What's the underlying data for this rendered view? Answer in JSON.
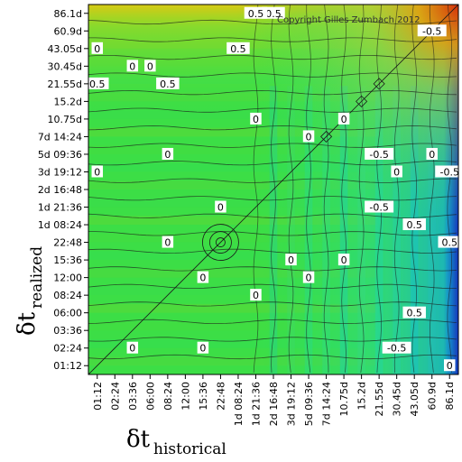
{
  "chart_data": {
    "type": "heatmap",
    "title": "",
    "copyright": "Copyright Gilles Zumbach 2012",
    "xlabel": {
      "symbol": "δt",
      "subscript": "historical"
    },
    "ylabel": {
      "symbol": "δt",
      "subscript": "realized"
    },
    "x_ticks": [
      "01:12",
      "02:24",
      "03:36",
      "06:00",
      "08:24",
      "12:00",
      "15:36",
      "22:48",
      "1d 08:24",
      "1d 21:36",
      "2d 16:48",
      "3d 19:12",
      "5d 09:36",
      "7d 14:24",
      "10.75d",
      "15.2d",
      "21.55d",
      "30.45d",
      "43.05d",
      "60.9d",
      "86.1d"
    ],
    "y_ticks": [
      "01:12",
      "02:24",
      "03:36",
      "06:00",
      "08:24",
      "12:00",
      "15:36",
      "22:48",
      "1d 08:24",
      "1d 21:36",
      "2d 16:48",
      "3d 19:12",
      "5d 09:36",
      "7d 14:24",
      "10.75d",
      "15.2d",
      "21.55d",
      "30.45d",
      "43.05d",
      "60.9d",
      "86.1d"
    ],
    "colorscale": [
      "#1020d0",
      "#10a8e0",
      "#20d8b0",
      "#30e060",
      "#8ad820",
      "#d8d010",
      "#f0a000",
      "#e03000"
    ],
    "contour_labels": [
      {
        "text": "0.5",
        "x": "2d 16:48",
        "y": "86.1d"
      },
      {
        "text": "0.5",
        "x": "1d 21:36",
        "y": "86.1d"
      },
      {
        "text": "-0.5",
        "x": "60.9d",
        "y": "60.9d"
      },
      {
        "text": "0",
        "x": "01:12",
        "y": "43.05d"
      },
      {
        "text": "0.5",
        "x": "1d 08:24",
        "y": "43.05d"
      },
      {
        "text": "0",
        "x": "03:36",
        "y": "30.45d"
      },
      {
        "text": "0",
        "x": "06:00",
        "y": "30.45d"
      },
      {
        "text": "0.5",
        "x": "01:12",
        "y": "21.55d"
      },
      {
        "text": "0.5",
        "x": "08:24",
        "y": "21.55d"
      },
      {
        "text": "0",
        "x": "1d 21:36",
        "y": "10.75d"
      },
      {
        "text": "0",
        "x": "5d 09:36",
        "y": "7d 14:24"
      },
      {
        "text": "0",
        "x": "10.75d",
        "y": "10.75d"
      },
      {
        "text": "0",
        "x": "08:24",
        "y": "5d 09:36"
      },
      {
        "text": "0",
        "x": "01:12",
        "y": "3d 19:12"
      },
      {
        "text": "0",
        "x": "22.48",
        "y": "1d 21:36"
      },
      {
        "text": "0",
        "x": "08:24",
        "y": "22:48"
      },
      {
        "text": "0",
        "x": "3d 19:12",
        "y": "15:36"
      },
      {
        "text": "0",
        "x": "10.75d",
        "y": "15:36"
      },
      {
        "text": "0",
        "x": "15:36",
        "y": "12:00"
      },
      {
        "text": "0",
        "x": "1d 21:36",
        "y": "08:24"
      },
      {
        "text": "0",
        "x": "5d 09:36",
        "y": "12:00"
      },
      {
        "text": "0",
        "x": "03:36",
        "y": "02:24"
      },
      {
        "text": "0",
        "x": "15:36",
        "y": "02:24"
      },
      {
        "text": "-0.5",
        "x": "21.55d",
        "y": "5d 09:36"
      },
      {
        "text": "0",
        "x": "30.45d",
        "y": "3d 19:12"
      },
      {
        "text": "-0.5",
        "x": "21.55d",
        "y": "1d 21:36"
      },
      {
        "text": "0.5",
        "x": "43.05d",
        "y": "1d 08:24"
      },
      {
        "text": "0",
        "x": "60.9d",
        "y": "5d 09:36"
      },
      {
        "text": "-0.5",
        "x": "86.1d",
        "y": "3d 19:12"
      },
      {
        "text": "0.5",
        "x": "43.05d",
        "y": "06:00"
      },
      {
        "text": "-0.5",
        "x": "30.45d",
        "y": "02:24"
      },
      {
        "text": "0.5",
        "x": "86.1d",
        "y": "22:48"
      },
      {
        "text": "0",
        "x": "86.1d",
        "y": "01:12"
      }
    ],
    "colors": {
      "background": "#ffffff",
      "contour": "#1a1a1a",
      "border": "#000000"
    },
    "grid": false
  }
}
